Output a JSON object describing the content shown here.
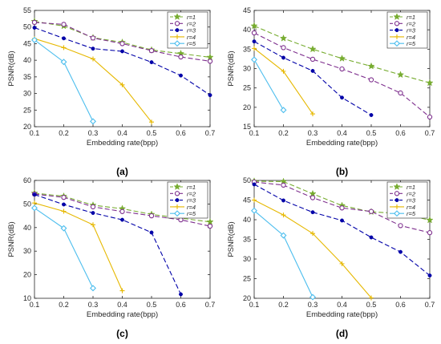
{
  "legend_labels": [
    "r=1",
    "r=2",
    "r=3",
    "r=4",
    "r=5"
  ],
  "styles": [
    {
      "color": "#77ac30",
      "marker": "star",
      "dash": "6,3"
    },
    {
      "color": "#7e2f8e",
      "marker": "circle",
      "dash": "6,3"
    },
    {
      "color": "#0000a8",
      "marker": "dot",
      "dash": "6,3"
    },
    {
      "color": "#e6b800",
      "marker": "plus",
      "dash": ""
    },
    {
      "color": "#4dbeee",
      "marker": "diamond",
      "dash": ""
    }
  ],
  "chart_data": [
    {
      "type": "line",
      "panel_label": "(a)",
      "xlabel": "Embedding rate(bpp)",
      "ylabel": "PSNR(dB)",
      "xlim": [
        0.1,
        0.7
      ],
      "ylim": [
        20,
        55
      ],
      "xticks": [
        0.1,
        0.2,
        0.3,
        0.4,
        0.5,
        0.6,
        0.7
      ],
      "yticks": [
        20,
        25,
        30,
        35,
        40,
        45,
        50,
        55
      ],
      "legend_position": "top-right",
      "series": [
        {
          "name": "r=1",
          "x": [
            0.1,
            0.2,
            0.3,
            0.4,
            0.5,
            0.6,
            0.7
          ],
          "y": [
            51.7,
            50.3,
            46.8,
            45.4,
            43.1,
            42.0,
            40.9
          ]
        },
        {
          "name": "r=2",
          "x": [
            0.1,
            0.2,
            0.3,
            0.4,
            0.5,
            0.6,
            0.7
          ],
          "y": [
            51.4,
            50.8,
            46.7,
            45.0,
            42.9,
            41.0,
            39.7
          ]
        },
        {
          "name": "r=3",
          "x": [
            0.1,
            0.2,
            0.3,
            0.4,
            0.5,
            0.6,
            0.7
          ],
          "y": [
            49.8,
            46.6,
            43.5,
            42.7,
            39.4,
            35.4,
            29.5
          ]
        },
        {
          "name": "r=4",
          "x": [
            0.1,
            0.2,
            0.3,
            0.4,
            0.5
          ],
          "y": [
            46.5,
            43.8,
            40.4,
            32.6,
            21.4
          ]
        },
        {
          "name": "r=5",
          "x": [
            0.1,
            0.2,
            0.3
          ],
          "y": [
            46.1,
            39.5,
            21.6
          ]
        }
      ]
    },
    {
      "type": "line",
      "panel_label": "(b)",
      "xlabel": "Embedding rate(bpp)",
      "ylabel": "PSNR(dB)",
      "xlim": [
        0.1,
        0.7
      ],
      "ylim": [
        15,
        45
      ],
      "xticks": [
        0.1,
        0.2,
        0.3,
        0.4,
        0.5,
        0.6,
        0.7
      ],
      "yticks": [
        15,
        20,
        25,
        30,
        35,
        40,
        45
      ],
      "legend_position": "top-right",
      "series": [
        {
          "name": "r=1",
          "x": [
            0.1,
            0.2,
            0.3,
            0.4,
            0.5,
            0.6,
            0.7
          ],
          "y": [
            41.0,
            37.8,
            35.0,
            32.6,
            30.6,
            28.4,
            26.3
          ]
        },
        {
          "name": "r=2",
          "x": [
            0.1,
            0.2,
            0.3,
            0.4,
            0.5,
            0.6,
            0.7
          ],
          "y": [
            39.2,
            35.4,
            32.4,
            29.9,
            27.1,
            23.7,
            17.5
          ]
        },
        {
          "name": "r=3",
          "x": [
            0.1,
            0.2,
            0.3,
            0.4,
            0.5
          ],
          "y": [
            37.0,
            32.8,
            29.4,
            22.5,
            18.0
          ]
        },
        {
          "name": "r=4",
          "x": [
            0.1,
            0.2,
            0.3
          ],
          "y": [
            35.2,
            29.3,
            18.3
          ]
        },
        {
          "name": "r=5",
          "x": [
            0.1,
            0.2
          ],
          "y": [
            32.3,
            19.3
          ]
        }
      ]
    },
    {
      "type": "line",
      "panel_label": "(c)",
      "xlabel": "Embedding rate(bpp)",
      "ylabel": "PSNR(dB)",
      "xlim": [
        0.1,
        0.7
      ],
      "ylim": [
        10,
        60
      ],
      "xticks": [
        0.1,
        0.2,
        0.3,
        0.4,
        0.5,
        0.6,
        0.7
      ],
      "yticks": [
        10,
        20,
        30,
        40,
        50,
        60
      ],
      "legend_position": "top-right",
      "series": [
        {
          "name": "r=1",
          "x": [
            0.1,
            0.2,
            0.3,
            0.4,
            0.5,
            0.6,
            0.7
          ],
          "y": [
            54.6,
            53.3,
            49.5,
            48.0,
            45.6,
            44.0,
            42.4
          ]
        },
        {
          "name": "r=2",
          "x": [
            0.1,
            0.2,
            0.3,
            0.4,
            0.5,
            0.6,
            0.7
          ],
          "y": [
            54.2,
            52.8,
            48.8,
            46.8,
            45.0,
            43.3,
            40.6
          ]
        },
        {
          "name": "r=3",
          "x": [
            0.1,
            0.2,
            0.3,
            0.4,
            0.5,
            0.6
          ],
          "y": [
            54.0,
            49.8,
            46.2,
            43.3,
            37.9,
            11.7
          ]
        },
        {
          "name": "r=4",
          "x": [
            0.1,
            0.2,
            0.3,
            0.4
          ],
          "y": [
            50.4,
            46.9,
            41.2,
            13.2
          ]
        },
        {
          "name": "r=5",
          "x": [
            0.1,
            0.2,
            0.3
          ],
          "y": [
            48.3,
            39.7,
            14.3
          ]
        }
      ]
    },
    {
      "type": "line",
      "panel_label": "(d)",
      "xlabel": "Embedding rate(bpp)",
      "ylabel": "PSNR(dB)",
      "xlim": [
        0.1,
        0.7
      ],
      "ylim": [
        20,
        50
      ],
      "xticks": [
        0.1,
        0.2,
        0.3,
        0.4,
        0.5,
        0.6,
        0.7
      ],
      "yticks": [
        20,
        25,
        30,
        35,
        40,
        45,
        50
      ],
      "legend_position": "top-right",
      "series": [
        {
          "name": "r=1",
          "x": [
            0.1,
            0.2,
            0.3,
            0.4,
            0.5,
            0.6,
            0.7
          ],
          "y": [
            49.8,
            49.7,
            46.6,
            43.6,
            42.0,
            41.6,
            39.9
          ]
        },
        {
          "name": "r=2",
          "x": [
            0.1,
            0.2,
            0.3,
            0.4,
            0.5,
            0.6,
            0.7
          ],
          "y": [
            49.6,
            48.8,
            45.6,
            43.0,
            42.1,
            38.5,
            36.7
          ]
        },
        {
          "name": "r=3",
          "x": [
            0.1,
            0.2,
            0.3,
            0.4,
            0.5,
            0.6,
            0.7
          ],
          "y": [
            49.0,
            44.9,
            41.9,
            39.8,
            35.5,
            31.8,
            25.8
          ]
        },
        {
          "name": "r=4",
          "x": [
            0.1,
            0.2,
            0.3,
            0.4,
            0.5
          ],
          "y": [
            45.0,
            41.2,
            36.5,
            28.8,
            20.1
          ]
        },
        {
          "name": "r=5",
          "x": [
            0.1,
            0.2,
            0.3
          ],
          "y": [
            42.3,
            36.0,
            20.3
          ]
        }
      ]
    }
  ]
}
